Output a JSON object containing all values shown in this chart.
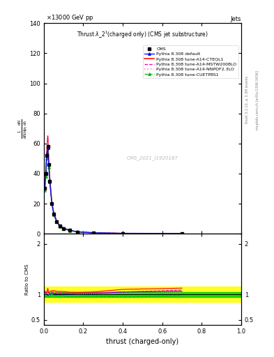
{
  "collision": "13000 GeV pp",
  "corner_label": "Jets",
  "xlabel": "thrust (charged-only)",
  "watermark": "CMS_2021_I1920187",
  "right_label1": "Rivet 3.1.10, ≥ 3.3M events",
  "right_label2": "mcplots.cern.ch [arXiv:1306.3436]",
  "ylim_main": [
    0,
    140
  ],
  "ylim_ratio": [
    0.4,
    2.2
  ],
  "cms_data_x": [
    0.005,
    0.01,
    0.015,
    0.02,
    0.025,
    0.03,
    0.04,
    0.05,
    0.065,
    0.08,
    0.1,
    0.13,
    0.17,
    0.25,
    0.4,
    0.7
  ],
  "cms_data_y": [
    30,
    40,
    52,
    58,
    46,
    35,
    20,
    13,
    8,
    5,
    3.5,
    2.2,
    1.2,
    0.6,
    0.2,
    0.08
  ],
  "pythia_default_x": [
    0.005,
    0.01,
    0.015,
    0.02,
    0.025,
    0.03,
    0.04,
    0.05,
    0.065,
    0.08,
    0.1,
    0.13,
    0.17,
    0.25,
    0.4,
    0.7
  ],
  "pythia_default_y": [
    31,
    41,
    53,
    57,
    46,
    35.5,
    20.5,
    13.2,
    8.1,
    5.1,
    3.55,
    2.22,
    1.22,
    0.61,
    0.21,
    0.085
  ],
  "pythia_cteq_x": [
    0.005,
    0.01,
    0.015,
    0.02,
    0.025,
    0.03,
    0.04,
    0.05,
    0.065,
    0.08,
    0.1,
    0.13,
    0.17,
    0.25,
    0.4,
    0.7
  ],
  "pythia_cteq_y": [
    32,
    42,
    54,
    65,
    47,
    37,
    21.5,
    14,
    8.5,
    5.3,
    3.7,
    2.3,
    1.25,
    0.63,
    0.22,
    0.09
  ],
  "pythia_mstw_x": [
    0.005,
    0.01,
    0.015,
    0.02,
    0.025,
    0.03,
    0.04,
    0.05,
    0.065,
    0.08,
    0.1,
    0.13,
    0.17,
    0.25,
    0.4,
    0.7
  ],
  "pythia_mstw_y": [
    31.5,
    41.5,
    53.5,
    63,
    46.5,
    36.2,
    21.0,
    13.7,
    8.3,
    5.2,
    3.62,
    2.26,
    1.23,
    0.62,
    0.21,
    0.087
  ],
  "pythia_nnpdf_x": [
    0.005,
    0.01,
    0.015,
    0.02,
    0.025,
    0.03,
    0.04,
    0.05,
    0.065,
    0.08,
    0.1,
    0.13,
    0.17,
    0.25,
    0.4,
    0.7
  ],
  "pythia_nnpdf_y": [
    30.5,
    40.5,
    52.5,
    61,
    45.5,
    35.8,
    20.7,
    13.5,
    8.2,
    5.15,
    3.58,
    2.24,
    1.21,
    0.61,
    0.205,
    0.083
  ],
  "pythia_cuetp_x": [
    0.005,
    0.01,
    0.015,
    0.02,
    0.025,
    0.03,
    0.04,
    0.05,
    0.065,
    0.08,
    0.1,
    0.13,
    0.17,
    0.25,
    0.4,
    0.7
  ],
  "pythia_cuetp_y": [
    29,
    38,
    50,
    57,
    44,
    34.5,
    20.0,
    12.8,
    7.8,
    4.9,
    3.4,
    2.1,
    1.15,
    0.58,
    0.19,
    0.078
  ],
  "colors": {
    "cms": "#000000",
    "default": "#0000ff",
    "cteq": "#ff0000",
    "mstw": "#ff00aa",
    "nnpdf": "#ff88cc",
    "cuetp": "#00bb00"
  },
  "ratio_green_band": 0.05,
  "ratio_yellow_band": 0.15,
  "bg_color": "#ffffff",
  "main_yticks": [
    0,
    20,
    40,
    60,
    80,
    100,
    120,
    140
  ]
}
